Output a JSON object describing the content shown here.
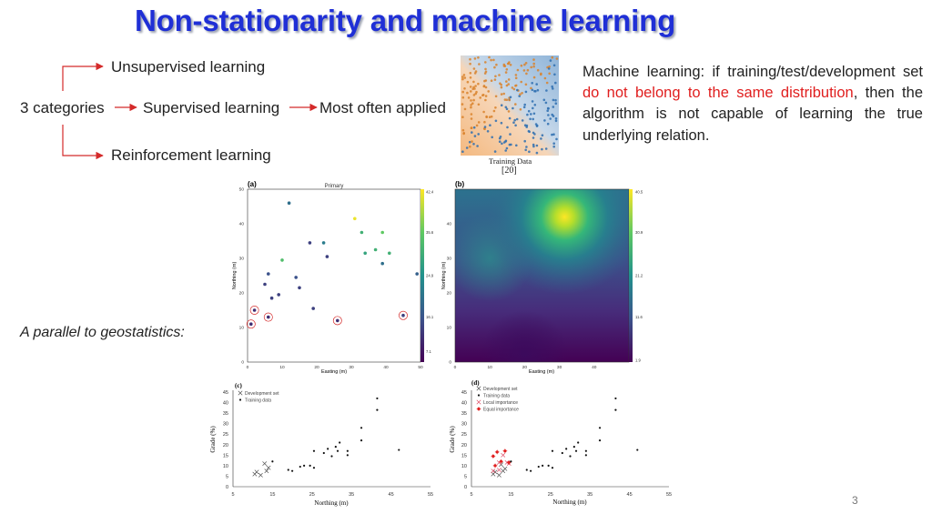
{
  "slide": {
    "title": "Non-stationarity and machine learning",
    "number": "3"
  },
  "categories": {
    "root": "3 categories",
    "items": [
      "Unsupervised learning",
      "Supervised learning",
      "Reinforcement learning"
    ],
    "note": "Most often applied"
  },
  "description": {
    "part1": "Machine learning: if training/test/development set ",
    "highlight": "do not belong to the same distribution",
    "part2": ", then the algorithm is not capable of learning the true underlying relation."
  },
  "training_figure": {
    "caption": "Training Data",
    "ref": "[20]"
  },
  "geostat_label": "A parallel to geostatistics:",
  "colors": {
    "title": "#1f2fd6",
    "highlight": "#e01e1e",
    "arrow": "#d42a2a"
  },
  "chart_data": [
    {
      "panel": "(a)",
      "type": "scatter",
      "title": "Primary",
      "xlabel": "Easting (m)",
      "ylabel": "Northing (m)",
      "xlim": [
        0,
        50
      ],
      "ylim": [
        0,
        50
      ],
      "xticks": [
        "0",
        "10",
        "20",
        "30",
        "40",
        "50"
      ],
      "yticks": [
        "0",
        "10",
        "20",
        "30",
        "40",
        "50"
      ],
      "colorbar_ticks": [
        "42.4",
        "35.6",
        "24.9",
        "16.1",
        "7.1"
      ],
      "points": [
        {
          "x": 12,
          "y": 46,
          "v": 20
        },
        {
          "x": 31,
          "y": 41.5,
          "v": 42
        },
        {
          "x": 33,
          "y": 37.5,
          "v": 30
        },
        {
          "x": 39,
          "y": 37.5,
          "v": 34
        },
        {
          "x": 10,
          "y": 29.5,
          "v": 32
        },
        {
          "x": 18,
          "y": 34.5,
          "v": 14
        },
        {
          "x": 22,
          "y": 34.5,
          "v": 22
        },
        {
          "x": 23,
          "y": 30.5,
          "v": 14
        },
        {
          "x": 34,
          "y": 31.5,
          "v": 28
        },
        {
          "x": 37,
          "y": 32.5,
          "v": 30
        },
        {
          "x": 39,
          "y": 28.5,
          "v": 20
        },
        {
          "x": 41,
          "y": 31.5,
          "v": 30
        },
        {
          "x": 6,
          "y": 25.5,
          "v": 16
        },
        {
          "x": 5,
          "y": 22.5,
          "v": 14
        },
        {
          "x": 14,
          "y": 24.5,
          "v": 16
        },
        {
          "x": 15,
          "y": 21.5,
          "v": 14
        },
        {
          "x": 7,
          "y": 18.5,
          "v": 14
        },
        {
          "x": 9,
          "y": 19.5,
          "v": 14
        },
        {
          "x": 19,
          "y": 15.5,
          "v": 14
        },
        {
          "x": 49,
          "y": 25.5,
          "v": 18
        },
        {
          "x": 2,
          "y": 15,
          "v": 12,
          "circled": true
        },
        {
          "x": 6,
          "y": 13,
          "v": 12,
          "circled": true
        },
        {
          "x": 1,
          "y": 11,
          "v": 12,
          "circled": true
        },
        {
          "x": 26,
          "y": 12,
          "v": 12,
          "circled": true
        },
        {
          "x": 45,
          "y": 13.5,
          "v": 14,
          "circled": true
        }
      ]
    },
    {
      "panel": "(b)",
      "type": "heatmap",
      "xlabel": "Easting (m)",
      "ylabel": "Northing (m)",
      "xlim": [
        0,
        50
      ],
      "ylim": [
        0,
        50
      ],
      "xticks": [
        "0",
        "10",
        "20",
        "30",
        "40"
      ],
      "yticks": [
        "0",
        "10",
        "20",
        "30",
        "40"
      ],
      "colorbar_ticks": [
        "40.5",
        "30.9",
        "21.2",
        "11.6",
        "1.9"
      ],
      "peak": {
        "x": 32,
        "y": 43
      }
    },
    {
      "panel": "(c)",
      "type": "scatter",
      "xlabel": "Northing (m)",
      "ylabel": "Grade (%)",
      "xlim": [
        5,
        55
      ],
      "ylim": [
        0,
        45
      ],
      "xticks": [
        "5",
        "15",
        "25",
        "35",
        "45",
        "55"
      ],
      "yticks": [
        "0",
        "5",
        "10",
        "15",
        "20",
        "25",
        "30",
        "35",
        "40",
        "45"
      ],
      "legend": [
        "Development set",
        "Training data"
      ],
      "development": [
        {
          "x": 10.5,
          "y": 6
        },
        {
          "x": 11,
          "y": 7
        },
        {
          "x": 12,
          "y": 5.5
        },
        {
          "x": 13,
          "y": 11
        },
        {
          "x": 14,
          "y": 9
        },
        {
          "x": 13.5,
          "y": 7.5
        }
      ],
      "training": [
        {
          "x": 15,
          "y": 12
        },
        {
          "x": 19,
          "y": 8
        },
        {
          "x": 20,
          "y": 7.5
        },
        {
          "x": 22,
          "y": 9.5
        },
        {
          "x": 23,
          "y": 10
        },
        {
          "x": 24.5,
          "y": 10
        },
        {
          "x": 25.5,
          "y": 9
        },
        {
          "x": 25.5,
          "y": 17
        },
        {
          "x": 28,
          "y": 16
        },
        {
          "x": 29,
          "y": 18
        },
        {
          "x": 30,
          "y": 14.5
        },
        {
          "x": 31,
          "y": 19
        },
        {
          "x": 31.5,
          "y": 17
        },
        {
          "x": 32,
          "y": 21
        },
        {
          "x": 34,
          "y": 17
        },
        {
          "x": 34,
          "y": 15
        },
        {
          "x": 37.5,
          "y": 22
        },
        {
          "x": 37.5,
          "y": 28
        },
        {
          "x": 41.5,
          "y": 42
        },
        {
          "x": 41.5,
          "y": 36.5
        },
        {
          "x": 47,
          "y": 17.5
        }
      ]
    },
    {
      "panel": "(d)",
      "type": "scatter",
      "xlabel": "Northing (m)",
      "ylabel": "Grade (%)",
      "xlim": [
        5,
        55
      ],
      "ylim": [
        0,
        45
      ],
      "xticks": [
        "5",
        "15",
        "25",
        "35",
        "45",
        "55"
      ],
      "yticks": [
        "0",
        "5",
        "10",
        "15",
        "20",
        "25",
        "30",
        "35",
        "40",
        "45"
      ],
      "legend": [
        "Development set",
        "Training data",
        "Local importance",
        "Equal importance"
      ],
      "development": [
        {
          "x": 10.5,
          "y": 6
        },
        {
          "x": 11,
          "y": 7
        },
        {
          "x": 12,
          "y": 5.5
        },
        {
          "x": 12.5,
          "y": 10.5
        },
        {
          "x": 13.5,
          "y": 8.5
        },
        {
          "x": 13,
          "y": 7.5
        }
      ],
      "local_importance": [
        {
          "x": 10.5,
          "y": 7.5
        },
        {
          "x": 12,
          "y": 11.5
        },
        {
          "x": 13,
          "y": 15
        },
        {
          "x": 14,
          "y": 11.5
        },
        {
          "x": 12,
          "y": 8
        },
        {
          "x": 14.5,
          "y": 11
        }
      ],
      "equal_importance": [
        {
          "x": 10.5,
          "y": 14.5
        },
        {
          "x": 11.5,
          "y": 16.5
        },
        {
          "x": 13.5,
          "y": 17
        },
        {
          "x": 12.5,
          "y": 12
        },
        {
          "x": 14.5,
          "y": 11.5
        },
        {
          "x": 11,
          "y": 10
        }
      ],
      "training": [
        {
          "x": 15,
          "y": 12
        },
        {
          "x": 19,
          "y": 8
        },
        {
          "x": 20,
          "y": 7.5
        },
        {
          "x": 22,
          "y": 9.5
        },
        {
          "x": 23,
          "y": 10
        },
        {
          "x": 24.5,
          "y": 10
        },
        {
          "x": 25.5,
          "y": 9
        },
        {
          "x": 25.5,
          "y": 17
        },
        {
          "x": 28,
          "y": 16
        },
        {
          "x": 29,
          "y": 18
        },
        {
          "x": 30,
          "y": 14.5
        },
        {
          "x": 31,
          "y": 19
        },
        {
          "x": 31.5,
          "y": 17
        },
        {
          "x": 32,
          "y": 21
        },
        {
          "x": 34,
          "y": 17
        },
        {
          "x": 34,
          "y": 15
        },
        {
          "x": 37.5,
          "y": 22
        },
        {
          "x": 37.5,
          "y": 28
        },
        {
          "x": 41.5,
          "y": 42
        },
        {
          "x": 41.5,
          "y": 36.5
        },
        {
          "x": 47,
          "y": 17.5
        }
      ]
    }
  ]
}
